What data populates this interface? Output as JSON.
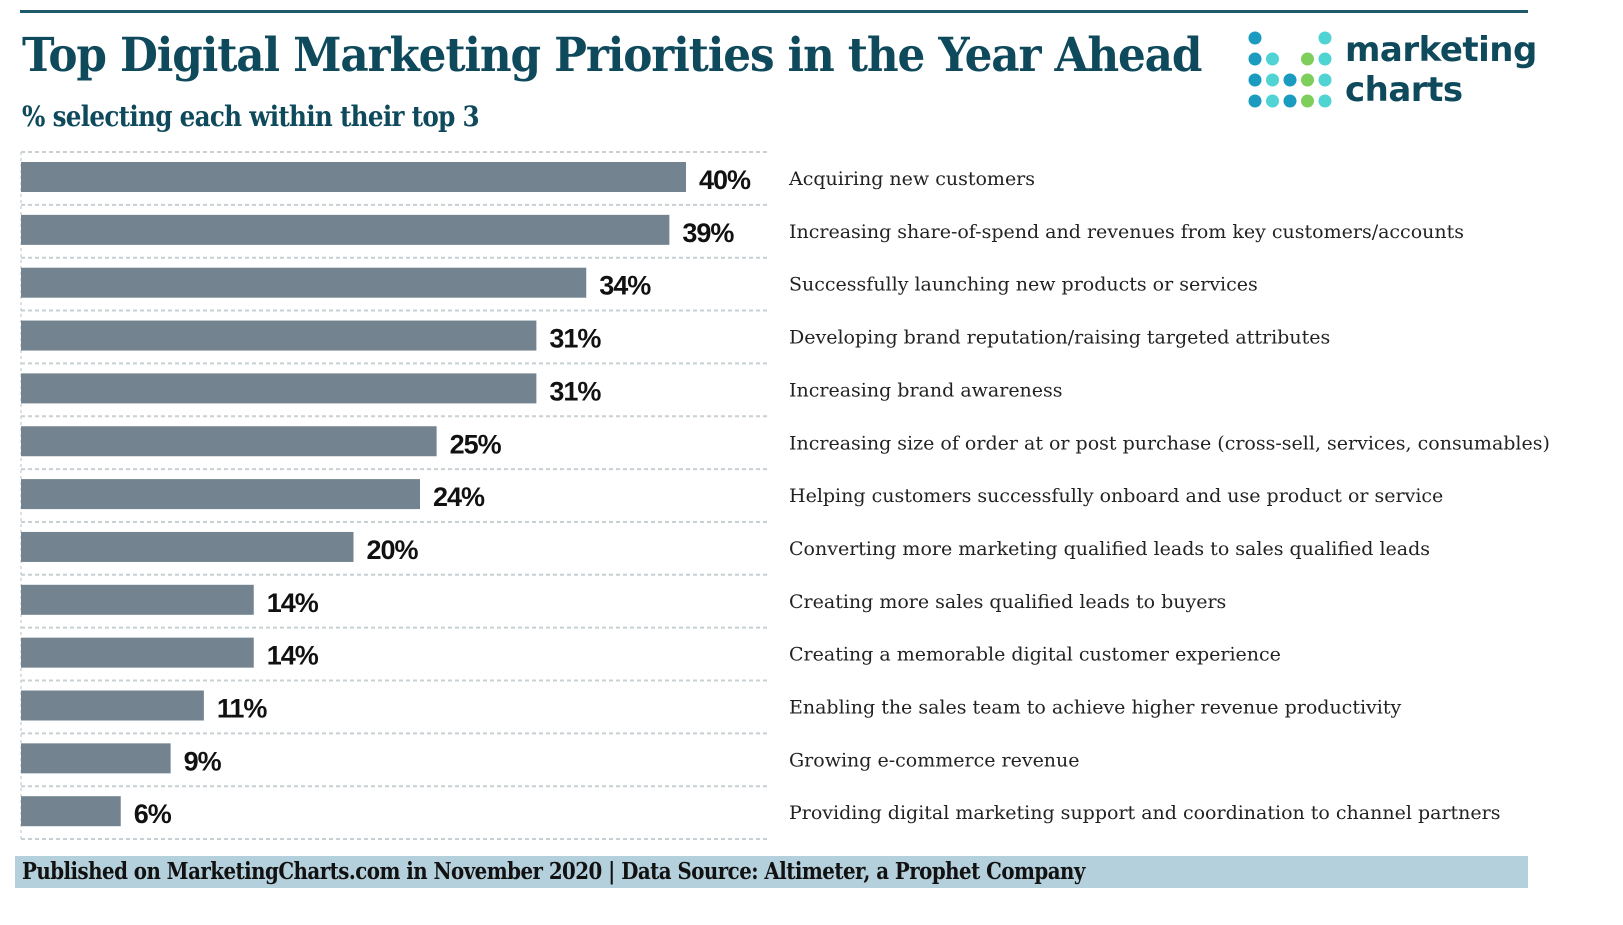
{
  "header": {
    "title": "Top Digital Marketing Priorities in the Year Ahead",
    "subtitle": "% selecting each within their top 3"
  },
  "logo": {
    "line1": "marketing",
    "line2": "charts",
    "dot_colors": {
      "dark": "#1a9bbf",
      "light": "#4fd3d3",
      "green": "#7dce5a"
    }
  },
  "colors": {
    "bar": "#738490",
    "title": "#0f4a5c",
    "footer_bg": "#b4d0dc"
  },
  "footer": {
    "text": "Published on MarketingCharts.com in November 2020 | Data Source: Altimeter, a Prophet Company"
  },
  "chart_data": {
    "type": "bar",
    "orientation": "horizontal",
    "title": "Top Digital Marketing Priorities in the Year Ahead",
    "subtitle": "% selecting each within their top 3",
    "xlabel": "",
    "ylabel": "",
    "unit": "%",
    "xlim": [
      0,
      40
    ],
    "grid": true,
    "legend": "none",
    "categories": [
      "Acquiring new customers",
      "Increasing share-of-spend and revenues from key customers/accounts",
      "Successfully launching new products or services",
      "Developing brand reputation/raising targeted attributes",
      "Increasing brand awareness",
      "Increasing size of order at or post purchase (cross-sell, services, consumables)",
      "Helping customers successfully onboard and use product or service",
      "Converting more marketing qualified leads to sales qualified leads",
      "Creating more sales qualified leads to buyers",
      "Creating a memorable digital customer experience",
      "Enabling the sales team to achieve higher revenue productivity",
      "Growing e-commerce revenue",
      "Providing digital marketing support and coordination to channel partners"
    ],
    "values": [
      40,
      39,
      34,
      31,
      31,
      25,
      24,
      20,
      14,
      14,
      11,
      9,
      6
    ],
    "data_labels": [
      "40%",
      "39%",
      "34%",
      "31%",
      "31%",
      "25%",
      "24%",
      "20%",
      "14%",
      "14%",
      "11%",
      "9%",
      "6%"
    ]
  }
}
